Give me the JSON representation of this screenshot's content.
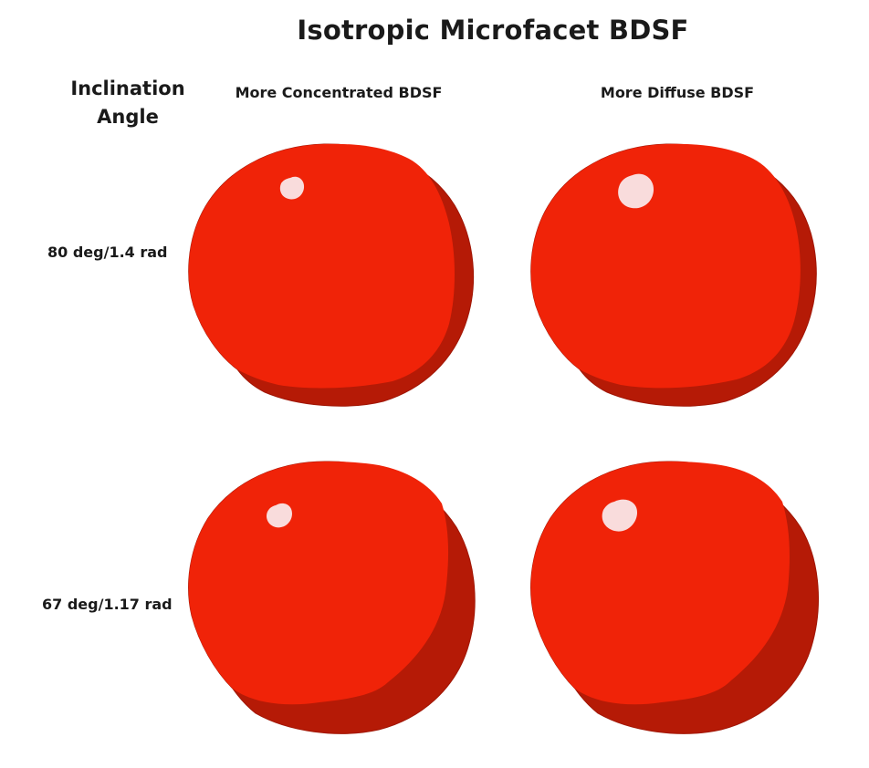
{
  "title": "Isotropic Microfacet BDSF",
  "row_header": "Inclination Angle",
  "columns": [
    {
      "label": "More Concentrated BDSF"
    },
    {
      "label": "More Diffuse BDSF"
    }
  ],
  "rows": [
    {
      "label": "80 deg/1.4 rad"
    },
    {
      "label": "67 deg/1.17 rad"
    }
  ],
  "colors": {
    "sphere_base": "#f02308",
    "sphere_shadow": "#b51a06",
    "highlight": "#f9dcdc"
  }
}
